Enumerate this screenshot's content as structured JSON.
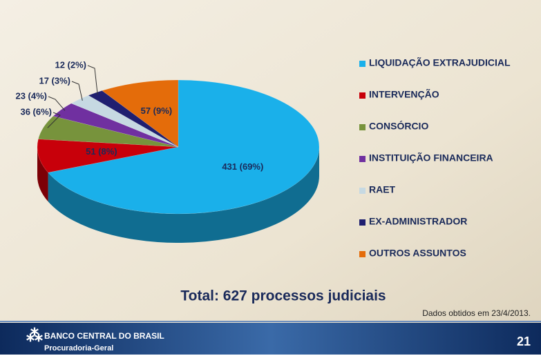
{
  "chart_data": {
    "type": "pie3d",
    "categories": [
      "LIQUIDAÇÃO EXTRAJUDICIAL",
      "INTERVENÇÃO",
      "CONSÓRCIO",
      "INSTITUIÇÃO FINANCEIRA",
      "RAET",
      "EX-ADMINISTRADOR",
      "OUTROS ASSUNTOS"
    ],
    "values": [
      431,
      51,
      36,
      23,
      17,
      12,
      57
    ],
    "value_labels": [
      "431 (69%)",
      "51 (8%)",
      "36 (6%)",
      "23 (4%)",
      "17 (3%)",
      "12 (2%)",
      "57 (9%)"
    ],
    "colors": [
      "#1ab0ea",
      "#c8000a",
      "#77933c",
      "#7030a0",
      "#c6d9e2",
      "#1f1f70",
      "#e46c0a"
    ],
    "legend": "right",
    "annotation": "Total: 627 processos judiciais",
    "note": "Dados obtidos em 23/4/2013."
  },
  "footer": {
    "organization": "BANCO CENTRAL DO BRASIL",
    "department": "Procuradoria-Geral",
    "page_number": "21"
  }
}
